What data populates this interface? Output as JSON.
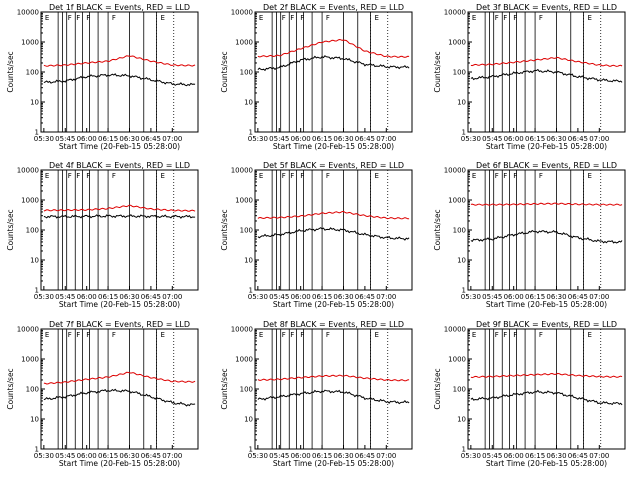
{
  "shared": {
    "ylabel": "Counts/sec",
    "xlabel": "Start Time (20-Feb-15 05:28:00)",
    "x_tick_labels": [
      "05:30",
      "05:45",
      "06:00",
      "06:15",
      "06:30",
      "06:45",
      "07:00"
    ],
    "y_tick_labels": [
      "1",
      "10",
      "100",
      "1000",
      "10000"
    ],
    "series_colors": {
      "events": "#000000",
      "lld": "#dd0000"
    }
  },
  "chart_data": [
    {
      "type": "line",
      "title": "Det 1f BLACK = Events, RED = LLD",
      "x": [
        "05:30",
        "05:45",
        "06:00",
        "06:15",
        "06:30",
        "06:45",
        "07:00",
        "07:10"
      ],
      "ylim": [
        1,
        10000
      ],
      "yscale": "log",
      "series": [
        {
          "key": "events",
          "values": [
            45,
            50,
            70,
            80,
            75,
            55,
            40,
            38
          ]
        },
        {
          "key": "lld",
          "values": [
            160,
            170,
            200,
            230,
            350,
            230,
            170,
            165
          ]
        }
      ],
      "markers": [
        "E",
        "F",
        "F",
        "F",
        "F",
        "E"
      ]
    },
    {
      "type": "line",
      "title": "Det 2f BLACK = Events, RED = LLD",
      "x": [
        "05:30",
        "05:45",
        "06:00",
        "06:15",
        "06:30",
        "06:45",
        "07:00",
        "07:10"
      ],
      "ylim": [
        1,
        10000
      ],
      "yscale": "log",
      "series": [
        {
          "key": "events",
          "values": [
            120,
            140,
            250,
            320,
            280,
            180,
            150,
            145
          ]
        },
        {
          "key": "lld",
          "values": [
            330,
            350,
            600,
            1000,
            1200,
            500,
            330,
            320
          ]
        }
      ],
      "markers": [
        "E",
        "F",
        "F",
        "F",
        "F",
        "E"
      ]
    },
    {
      "type": "line",
      "title": "Det 3f BLACK = Events, RED = LLD",
      "x": [
        "05:30",
        "05:45",
        "06:00",
        "06:15",
        "06:30",
        "06:45",
        "07:00",
        "07:10"
      ],
      "ylim": [
        1,
        10000
      ],
      "yscale": "log",
      "series": [
        {
          "key": "events",
          "values": [
            60,
            70,
            90,
            110,
            100,
            70,
            55,
            50
          ]
        },
        {
          "key": "lld",
          "values": [
            170,
            180,
            210,
            250,
            300,
            220,
            170,
            160
          ]
        }
      ],
      "markers": [
        "E",
        "F",
        "F",
        "F",
        "F",
        "E"
      ]
    },
    {
      "type": "line",
      "title": "Det 4f BLACK = Events, RED = LLD",
      "x": [
        "05:30",
        "05:45",
        "06:00",
        "06:15",
        "06:30",
        "06:45",
        "07:00",
        "07:10"
      ],
      "ylim": [
        1,
        10000
      ],
      "yscale": "log",
      "series": [
        {
          "key": "events",
          "values": [
            280,
            280,
            285,
            290,
            290,
            285,
            280,
            280
          ]
        },
        {
          "key": "lld",
          "values": [
            450,
            460,
            470,
            520,
            650,
            500,
            450,
            440
          ]
        }
      ],
      "markers": [
        "E",
        "F",
        "F",
        "F",
        "F",
        "E"
      ]
    },
    {
      "type": "line",
      "title": "Det 5f BLACK = Events, RED = LLD",
      "x": [
        "05:30",
        "05:45",
        "06:00",
        "06:15",
        "06:30",
        "06:45",
        "07:00",
        "07:10"
      ],
      "ylim": [
        1,
        10000
      ],
      "yscale": "log",
      "series": [
        {
          "key": "events",
          "values": [
            60,
            70,
            95,
            110,
            100,
            70,
            55,
            52
          ]
        },
        {
          "key": "lld",
          "values": [
            250,
            260,
            290,
            360,
            400,
            300,
            250,
            245
          ]
        }
      ],
      "markers": [
        "E",
        "F",
        "F",
        "F",
        "F",
        "E"
      ]
    },
    {
      "type": "line",
      "title": "Det 6f BLACK = Events, RED = LLD",
      "x": [
        "05:30",
        "05:45",
        "06:00",
        "06:15",
        "06:30",
        "06:45",
        "07:00",
        "07:10"
      ],
      "ylim": [
        1,
        10000
      ],
      "yscale": "log",
      "series": [
        {
          "key": "events",
          "values": [
            45,
            50,
            70,
            90,
            85,
            55,
            42,
            40
          ]
        },
        {
          "key": "lld",
          "values": [
            700,
            700,
            710,
            740,
            760,
            720,
            700,
            700
          ]
        }
      ],
      "markers": [
        "E",
        "F",
        "F",
        "F",
        "F",
        "E"
      ]
    },
    {
      "type": "line",
      "title": "Det 7f BLACK = Events, RED = LLD",
      "x": [
        "05:30",
        "05:45",
        "06:00",
        "06:15",
        "06:30",
        "06:45",
        "07:00",
        "07:10"
      ],
      "ylim": [
        1,
        10000
      ],
      "yscale": "log",
      "series": [
        {
          "key": "events",
          "values": [
            45,
            55,
            75,
            90,
            85,
            55,
            35,
            30
          ]
        },
        {
          "key": "lld",
          "values": [
            150,
            170,
            210,
            250,
            360,
            240,
            180,
            175
          ]
        }
      ],
      "markers": [
        "E",
        "F",
        "F",
        "F",
        "F",
        "E"
      ]
    },
    {
      "type": "line",
      "title": "Det 8f BLACK = Events, RED = LLD",
      "x": [
        "05:30",
        "05:45",
        "06:00",
        "06:15",
        "06:30",
        "06:45",
        "07:00",
        "07:10"
      ],
      "ylim": [
        1,
        10000
      ],
      "yscale": "log",
      "series": [
        {
          "key": "events",
          "values": [
            45,
            55,
            70,
            85,
            80,
            50,
            38,
            36
          ]
        },
        {
          "key": "lld",
          "values": [
            200,
            210,
            240,
            270,
            280,
            230,
            200,
            195
          ]
        }
      ],
      "markers": [
        "E",
        "F",
        "F",
        "F",
        "F",
        "E"
      ]
    },
    {
      "type": "line",
      "title": "Det 9f BLACK = Events, RED = LLD",
      "x": [
        "05:30",
        "05:45",
        "06:00",
        "06:15",
        "06:30",
        "06:45",
        "07:00",
        "07:10"
      ],
      "ylim": [
        1,
        10000
      ],
      "yscale": "log",
      "series": [
        {
          "key": "events",
          "values": [
            45,
            50,
            65,
            80,
            75,
            50,
            35,
            33
          ]
        },
        {
          "key": "lld",
          "values": [
            250,
            260,
            280,
            300,
            320,
            280,
            260,
            255
          ]
        }
      ],
      "markers": [
        "E",
        "F",
        "F",
        "F",
        "F",
        "E"
      ]
    }
  ]
}
